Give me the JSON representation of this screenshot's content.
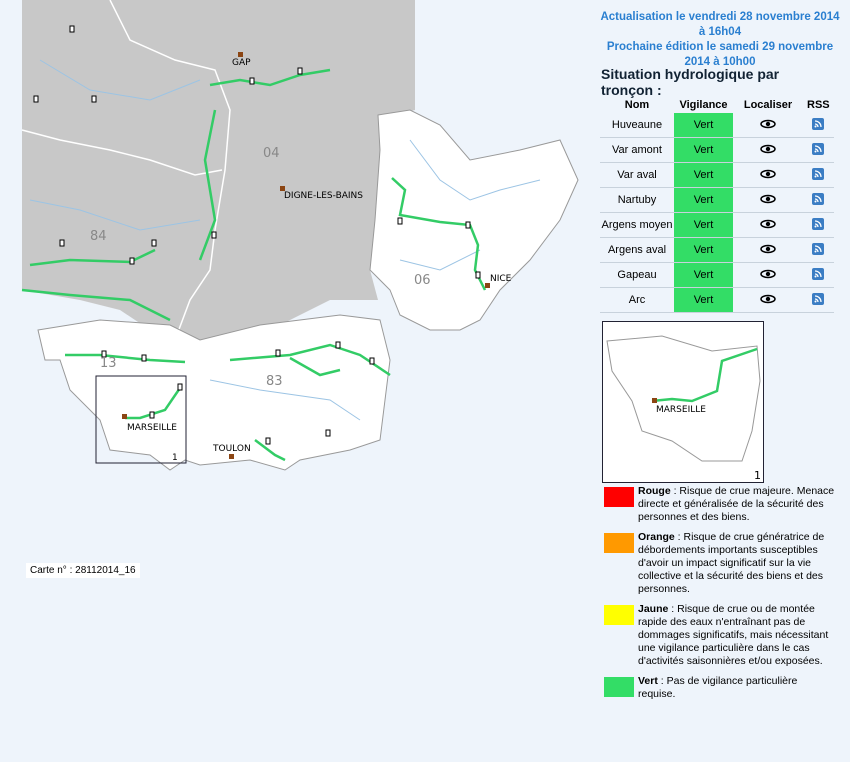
{
  "header": {
    "update": "Actualisation le vendredi 28 novembre 2014 à 16h04",
    "next": "Prochaine édition le samedi 29 novembre 2014 à 10h00"
  },
  "section_title": "Situation hydrologique par tronçon :",
  "table": {
    "columns": [
      "Nom",
      "Vigilance",
      "Localiser",
      "RSS"
    ],
    "rows": [
      [
        "Huveaune",
        "Vert"
      ],
      [
        "Var amont",
        "Vert"
      ],
      [
        "Var aval",
        "Vert"
      ],
      [
        "Nartuby",
        "Vert"
      ],
      [
        "Argens moyen",
        "Vert"
      ],
      [
        "Argens aval",
        "Vert"
      ],
      [
        "Gapeau",
        "Vert"
      ],
      [
        "Arc",
        "Vert"
      ]
    ]
  },
  "map": {
    "labels": [
      "GAP",
      "04",
      "DIGNE-LES-BAINS",
      "84",
      "NICE",
      "06",
      "13",
      "83",
      "MARSEILLE",
      "TOULON"
    ],
    "inset_number": "1",
    "card": "Carte n° : 28112014_16"
  },
  "inset": {
    "label": "MARSEILLE",
    "number": "1"
  },
  "legend": [
    {
      "name": "Rouge",
      "color": "#ff0000",
      "text": " : Risque de crue majeure. Menace directe et généralisée de la sécurité des personnes et des biens."
    },
    {
      "name": "Orange",
      "color": "#ff9900",
      "text": " : Risque de crue génératrice de débordements importants susceptibles d'avoir un impact significatif sur la vie collective et la sécurité des biens et des personnes."
    },
    {
      "name": "Jaune",
      "color": "#ffff00",
      "text": " : Risque de crue ou de montée rapide des eaux n'entraînant pas de dommages significatifs, mais nécessitant une vigilance particulière dans le cas d'activités saisonnières et/ou exposées."
    },
    {
      "name": "Vert",
      "color": "#33dd66",
      "text": " : Pas de vigilance particulière requise."
    }
  ]
}
